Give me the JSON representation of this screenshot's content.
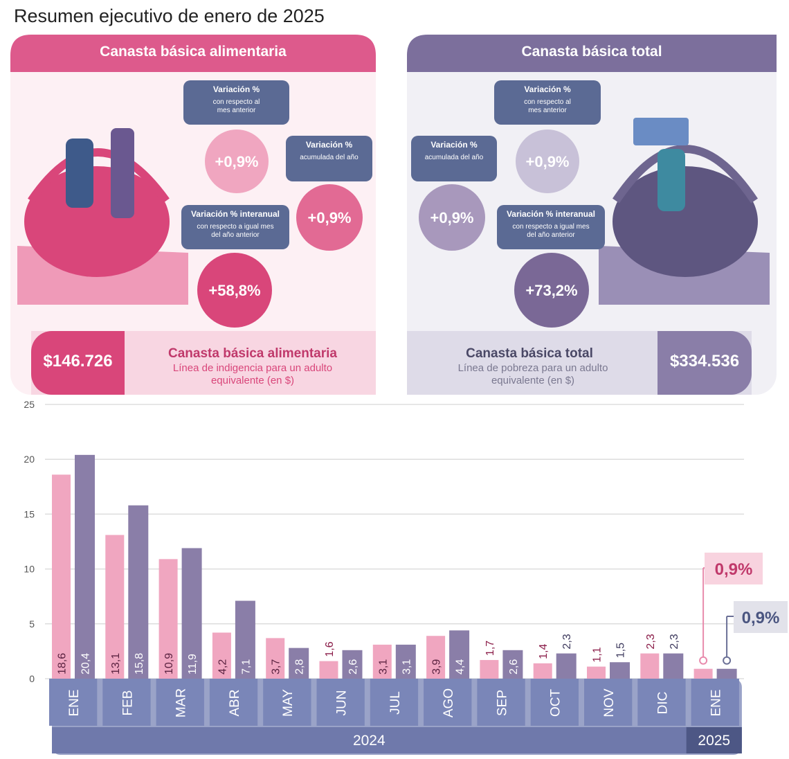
{
  "title": "Resumen ejecutivo de enero de 2025",
  "panels": [
    {
      "header": "Canasta básica alimentaria",
      "stats": [
        {
          "label": "Variación %",
          "sublabel": "con respecto al mes anterior",
          "value": "+0,9%"
        },
        {
          "label": "Variación %",
          "sublabel": "acumulada del año",
          "value": "+0,9%"
        },
        {
          "label": "Variación % interanual",
          "sublabel": "con respecto a igual mes del año anterior",
          "value": "+58,8%"
        }
      ],
      "amount": "$146.726",
      "amount_title": "Canasta básica alimentaria",
      "amount_desc": "Línea de indigencia para un adulto equivalente (en $)"
    },
    {
      "header": "Canasta básica total",
      "stats": [
        {
          "label": "Variación %",
          "sublabel": "con respecto al mes anterior",
          "value": "+0,9%"
        },
        {
          "label": "Variación %",
          "sublabel": "acumulada del año",
          "value": "+0,9%"
        },
        {
          "label": "Variación % interanual",
          "sublabel": "con respecto a igual mes del año anterior",
          "value": "+73,2%"
        }
      ],
      "amount": "$334.536",
      "amount_title": "Canasta básica total",
      "amount_desc": "Línea de pobreza para un adulto equivalente (en $)"
    }
  ],
  "chart_data": {
    "type": "bar",
    "groups": [
      {
        "name": "2024",
        "categories": [
          "ENE",
          "FEB",
          "MAR",
          "ABR",
          "MAY",
          "JUN",
          "JUL",
          "AGO",
          "SEP",
          "OCT",
          "NOV",
          "DIC"
        ]
      },
      {
        "name": "2025",
        "categories": [
          "ENE"
        ]
      }
    ],
    "series": [
      {
        "color": "#f0a6c0",
        "values": [
          18.6,
          13.1,
          10.9,
          4.2,
          3.7,
          1.6,
          3.1,
          3.9,
          1.7,
          1.4,
          1.1,
          2.3,
          0.9
        ],
        "value_labels": [
          "18,6",
          "13,1",
          "10,9",
          "4,2",
          "3,7",
          "1,6",
          "3,1",
          "3,9",
          "1,7",
          "1,4",
          "1,1",
          "2,3",
          "0,9%"
        ]
      },
      {
        "color": "#8a7ea8",
        "values": [
          20.4,
          15.8,
          11.9,
          7.1,
          2.8,
          2.6,
          3.1,
          4.4,
          2.6,
          2.3,
          1.5,
          2.3,
          0.9
        ],
        "value_labels": [
          "20,4",
          "15,8",
          "11,9",
          "7,1",
          "2,8",
          "2,6",
          "3,1",
          "4,4",
          "2,6",
          "2,3",
          "1,5",
          "2,3",
          "0,9%"
        ]
      }
    ],
    "ylim": [
      0,
      25
    ],
    "yticks": [
      0,
      5,
      10,
      15,
      20,
      25
    ],
    "grid": true
  }
}
